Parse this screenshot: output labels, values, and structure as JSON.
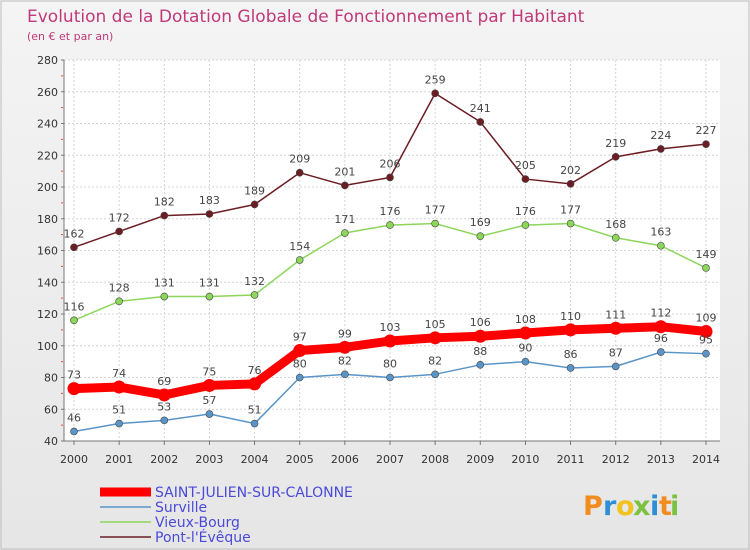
{
  "chart_data": {
    "type": "line",
    "title": "Evolution de la Dotation Globale de Fonctionnement par Habitant",
    "subtitle": "(en € et par an)",
    "x": [
      "2000",
      "2001",
      "2002",
      "2003",
      "2004",
      "2005",
      "2006",
      "2007",
      "2008",
      "2009",
      "2010",
      "2011",
      "2012",
      "2013",
      "2014"
    ],
    "ylim": [
      40,
      280
    ],
    "yticks": [
      40,
      60,
      80,
      100,
      120,
      140,
      160,
      180,
      200,
      220,
      240,
      260,
      280
    ],
    "grid": true,
    "legend_position": "bottom-left",
    "series": [
      {
        "name": "Pont-l'Évêque",
        "color": "#6b1d23",
        "values": [
          162,
          172,
          182,
          183,
          189,
          209,
          201,
          206,
          259,
          241,
          205,
          202,
          219,
          224,
          227
        ]
      },
      {
        "name": "Vieux-Bourg",
        "color": "#8cd65a",
        "values": [
          116,
          128,
          131,
          131,
          132,
          154,
          171,
          176,
          177,
          169,
          176,
          177,
          168,
          163,
          149
        ]
      },
      {
        "name": "Surville",
        "color": "#5a95c8",
        "values": [
          46,
          51,
          53,
          57,
          51,
          80,
          82,
          80,
          82,
          88,
          90,
          86,
          87,
          96,
          95
        ]
      },
      {
        "name": "SAINT-JULIEN-SUR-CALONNE",
        "color": "#ff0000",
        "values": [
          73,
          74,
          69,
          75,
          76,
          97,
          99,
          103,
          105,
          106,
          108,
          110,
          111,
          112,
          109
        ]
      }
    ]
  },
  "legend": [
    {
      "label": "SAINT-JULIEN-SUR-CALONNE",
      "color": "#ff0000"
    },
    {
      "label": "Surville",
      "color": "#5a95c8"
    },
    {
      "label": "Vieux-Bourg",
      "color": "#8cd65a"
    },
    {
      "label": "Pont-l'Évêque",
      "color": "#6b1d23"
    }
  ],
  "logo": {
    "text": "Proxiti",
    "letters": [
      "P",
      "r",
      "o",
      "x",
      "i",
      "t",
      "i"
    ],
    "colors": [
      "#f28c1e",
      "#2f8fd6",
      "#f2c21e",
      "#7cc242",
      "#2f8fd6",
      "#f28c1e",
      "#7cc242"
    ]
  }
}
